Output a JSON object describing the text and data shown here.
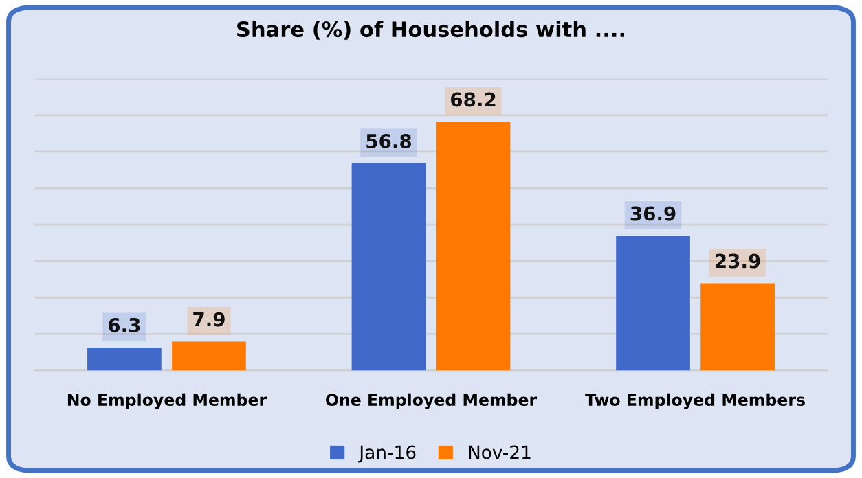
{
  "chart_data": {
    "type": "bar",
    "title": "Share (%) of Households with ....",
    "categories": [
      "No Employed Member",
      "One Employed Member",
      "Two Employed Members"
    ],
    "series": [
      {
        "name": "Jan-16",
        "color": "#4169c9",
        "values": [
          6.3,
          56.8,
          36.9
        ]
      },
      {
        "name": "Nov-21",
        "color": "#ff7800",
        "values": [
          7.9,
          68.2,
          23.9
        ]
      }
    ],
    "ylim": [
      0,
      80
    ],
    "yticks": [
      {
        "value": 0,
        "label": null
      },
      {
        "value": 10,
        "label": null
      },
      {
        "value": 20,
        "label": null
      },
      {
        "value": 30,
        "label": null
      },
      {
        "value": 40,
        "label": null
      },
      {
        "value": 50,
        "label": null
      },
      {
        "value": 60,
        "label": null
      },
      {
        "value": 70,
        "label": null
      },
      {
        "value": 80,
        "label": null
      }
    ],
    "tick_labels": "x",
    "grid": "y",
    "legend": "bottom",
    "data_labels": true
  }
}
